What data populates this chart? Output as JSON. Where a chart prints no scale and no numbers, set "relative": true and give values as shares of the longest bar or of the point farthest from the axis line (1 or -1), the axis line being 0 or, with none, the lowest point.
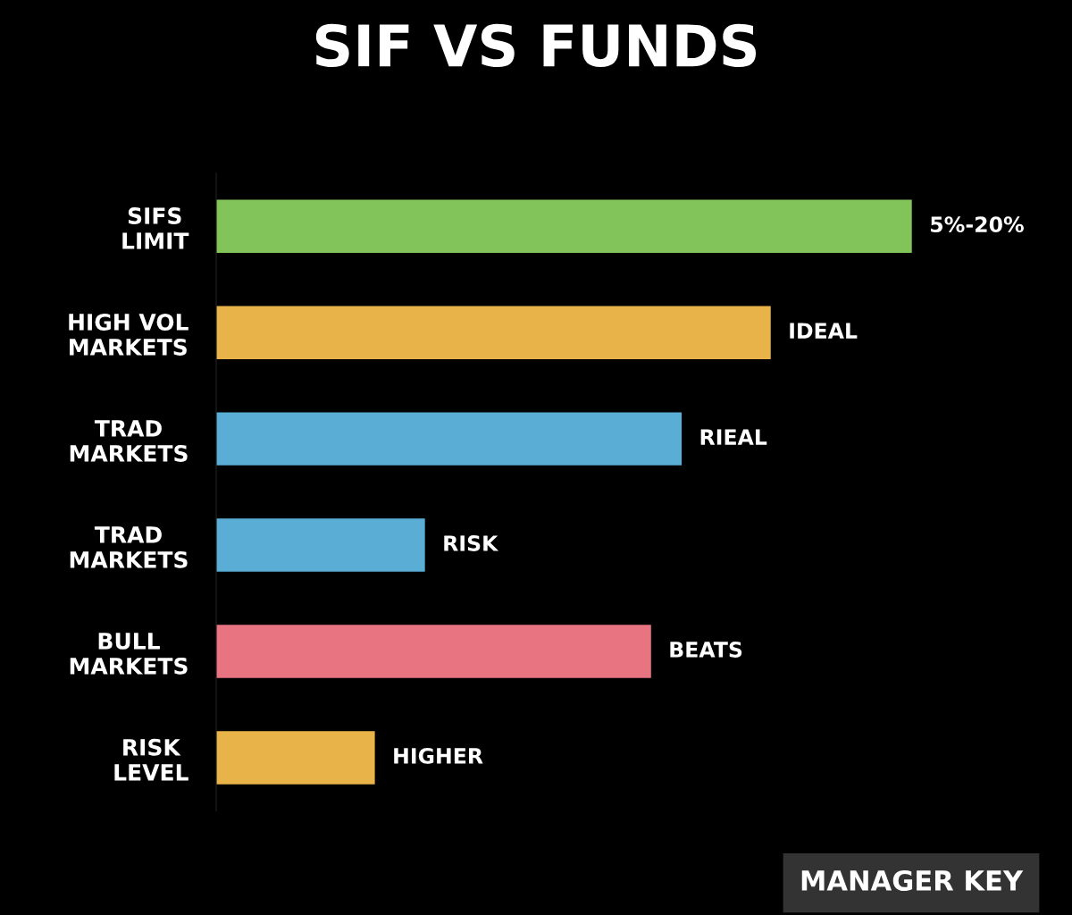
{
  "chart_data": {
    "type": "bar",
    "orientation": "horizontal",
    "relative": true,
    "title": "SIF VS FUNDS",
    "categories": [
      "SIFS\nLIMIT",
      "HIGH VOL\nMARKETS",
      "TRAD\nMARKETS",
      "TRAD\nMARKETS",
      "BULL\nMARKETS",
      "RISK\nLEVEL"
    ],
    "values": [
      1,
      0.797,
      0.669,
      0.3,
      0.625,
      0.228
    ],
    "colors": [
      "#82c45a",
      "#e8b44a",
      "#5aaed6",
      "#5aaed6",
      "#e87482",
      "#e8b44a"
    ],
    "annotations": [
      "5%-20%",
      "IDEAL",
      "RIEAL",
      "RISK",
      "BEATS",
      "HIGHER",
      "MANAGER KEY"
    ],
    "grid": false,
    "legend": false
  }
}
